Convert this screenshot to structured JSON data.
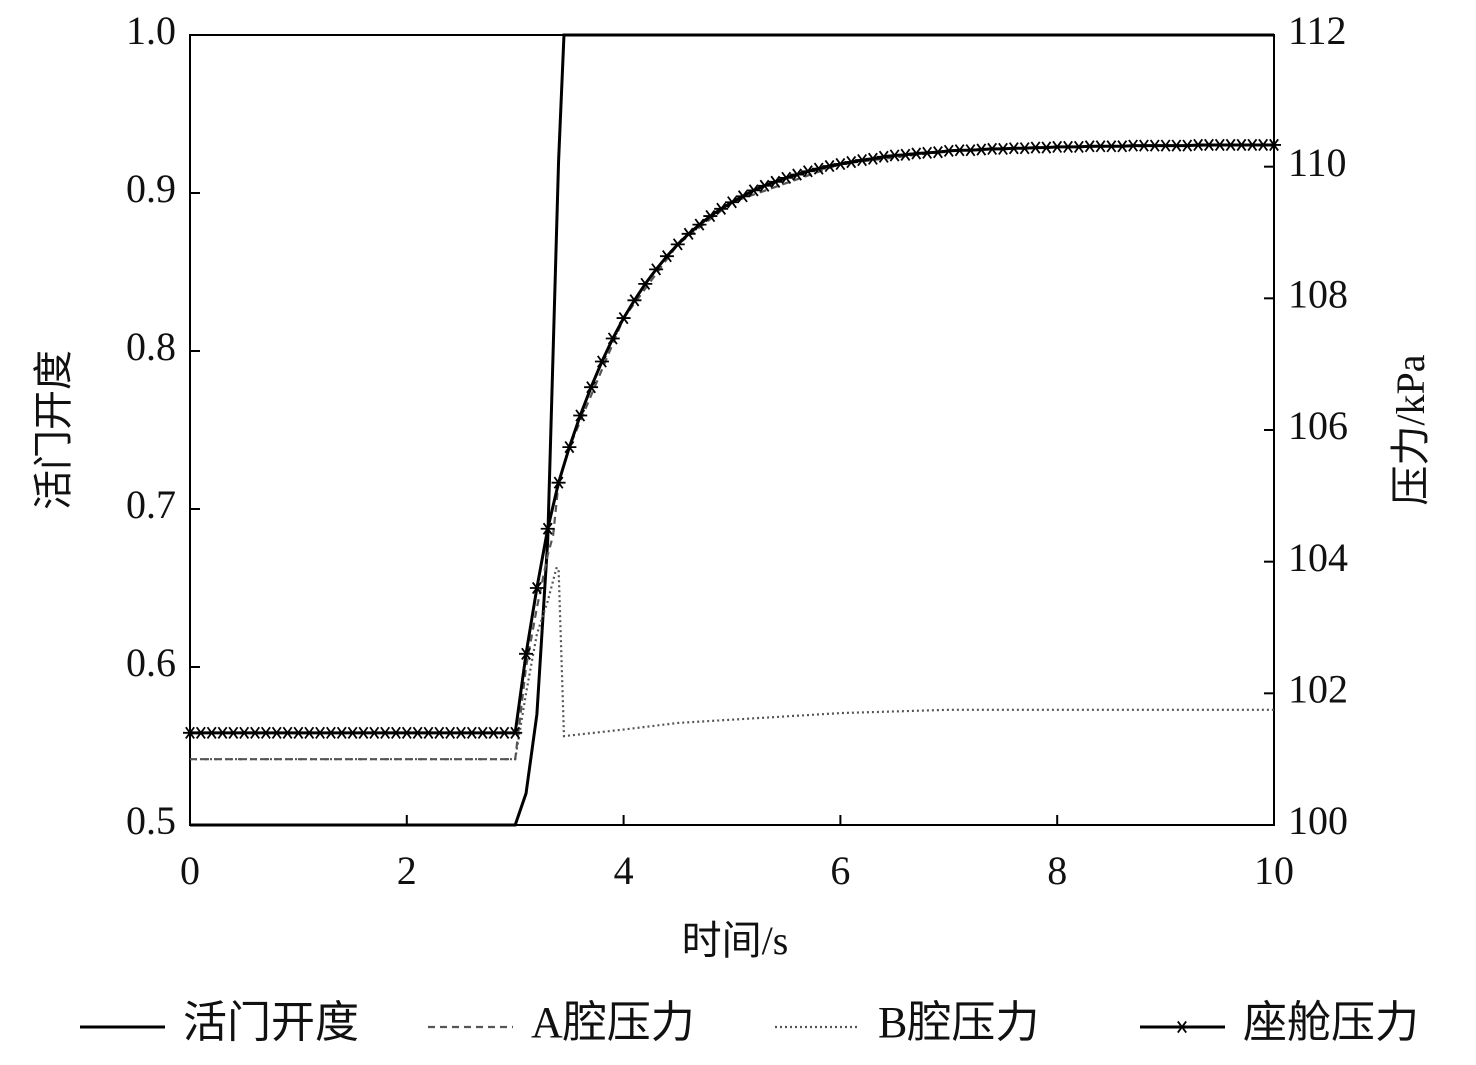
{
  "chart_data": {
    "type": "line",
    "xlabel": "时间/s",
    "ylabel": "活门开度",
    "y2label": "压力/kPa",
    "xlim": [
      0,
      10
    ],
    "xticks": [
      0,
      2,
      4,
      6,
      8,
      10
    ],
    "ylim": [
      0.5,
      1.0
    ],
    "yticks": [
      0.5,
      0.6,
      0.7,
      0.8,
      0.9,
      {
        "value": 1,
        "label": "1.0"
      }
    ],
    "y2lim": [
      100,
      112
    ],
    "y2ticks": [
      100,
      102,
      104,
      106,
      108,
      110,
      112
    ],
    "legend": "bottom",
    "series": [
      {
        "name": "活门开度",
        "color": "#000000",
        "linestyle": "solid",
        "axis": "y",
        "x": [
          0,
          3,
          3.1,
          3.2,
          3.3,
          3.35,
          3.4,
          3.45,
          10
        ],
        "values": [
          0.5,
          0.5,
          0.52,
          0.57,
          0.68,
          0.8,
          0.92,
          1.0,
          1.0
        ]
      },
      {
        "name": "A腔压力",
        "color": "#555555",
        "linestyle": "dashed",
        "axis": "y2",
        "x": [
          0,
          3,
          3.1,
          3.2,
          3.3,
          3.35,
          3.4,
          3.5,
          4,
          4.5,
          5,
          6,
          7,
          8,
          10
        ],
        "values": [
          101.0,
          101.0,
          102.4,
          103.3,
          104.1,
          104.4,
          105.2,
          105.74,
          107.7,
          108.82,
          109.46,
          110.04,
          110.24,
          110.3,
          110.33
        ]
      },
      {
        "name": "B腔压力",
        "color": "#555555",
        "linestyle": "dotted",
        "axis": "y2",
        "x": [
          0,
          3,
          3.1,
          3.2,
          3.3,
          3.38,
          3.4,
          3.45,
          4,
          4.5,
          5,
          6,
          7,
          10
        ],
        "values": [
          101.0,
          101.0,
          102.0,
          102.9,
          103.4,
          103.9,
          103.9,
          101.35,
          101.45,
          101.55,
          101.6,
          101.7,
          101.75,
          101.75
        ]
      },
      {
        "name": "座舱压力",
        "color": "#000000",
        "linestyle": "solid",
        "marker": "star",
        "axis": "y2",
        "x": [
          0,
          0.1,
          0.2,
          0.3,
          0.4,
          0.5,
          0.6,
          0.7,
          0.8,
          0.9,
          1,
          1.1,
          1.2,
          1.3,
          1.4,
          1.5,
          1.6,
          1.7,
          1.8,
          1.9,
          2,
          2.1,
          2.2,
          2.3,
          2.4,
          2.5,
          2.6,
          2.7,
          2.8,
          2.9,
          3,
          3.1,
          3.2,
          3.3,
          3.4,
          3.5,
          3.6,
          3.7,
          3.8,
          3.9,
          4,
          4.1,
          4.2,
          4.3,
          4.4,
          4.5,
          4.6,
          4.7,
          4.8,
          4.9,
          5,
          5.1,
          5.2,
          5.3,
          5.4,
          5.5,
          5.6,
          5.7,
          5.8,
          5.9,
          6,
          6.1,
          6.2,
          6.3,
          6.4,
          6.5,
          6.6,
          6.7,
          6.8,
          6.9,
          7,
          7.1,
          7.2,
          7.3,
          7.4,
          7.5,
          7.6,
          7.7,
          7.8,
          7.9,
          8,
          8.1,
          8.2,
          8.3,
          8.4,
          8.5,
          8.6,
          8.7,
          8.8,
          8.9,
          9,
          9.1,
          9.2,
          9.3,
          9.4,
          9.5,
          9.6,
          9.7,
          9.8,
          9.9,
          10
        ],
        "values": [
          101.4,
          101.4,
          101.4,
          101.4,
          101.4,
          101.4,
          101.4,
          101.4,
          101.4,
          101.4,
          101.4,
          101.4,
          101.4,
          101.4,
          101.4,
          101.4,
          101.4,
          101.4,
          101.4,
          101.4,
          101.4,
          101.4,
          101.4,
          101.4,
          101.4,
          101.4,
          101.4,
          101.4,
          101.4,
          101.4,
          101.4,
          102.6,
          103.6,
          104.5,
          105.2,
          105.74,
          106.22,
          106.65,
          107.04,
          107.39,
          107.7,
          107.97,
          108.22,
          108.44,
          108.64,
          108.82,
          108.98,
          109.12,
          109.25,
          109.36,
          109.46,
          109.55,
          109.64,
          109.71,
          109.77,
          109.83,
          109.88,
          109.93,
          109.97,
          110.01,
          110.04,
          110.07,
          110.1,
          110.12,
          110.15,
          110.17,
          110.18,
          110.2,
          110.21,
          110.22,
          110.24,
          110.25,
          110.25,
          110.26,
          110.27,
          110.27,
          110.28,
          110.28,
          110.29,
          110.29,
          110.3,
          110.3,
          110.3,
          110.31,
          110.31,
          110.31,
          110.31,
          110.32,
          110.32,
          110.32,
          110.32,
          110.32,
          110.32,
          110.33,
          110.33,
          110.33,
          110.33,
          110.33,
          110.33,
          110.33,
          110.33
        ]
      }
    ]
  }
}
